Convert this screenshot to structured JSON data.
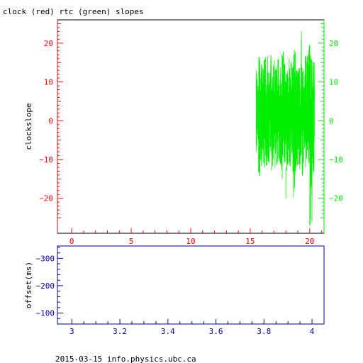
{
  "title": "clock (red) rtc (green) slopes",
  "footer": "2015-03-15 info.physics.ubc.ca",
  "colors": {
    "red": "#ff0000",
    "green": "#00ee00",
    "blue": "#0000aa",
    "black": "#000000"
  },
  "chart_data": [
    {
      "type": "line",
      "title": "clock (red) rtc (green) slopes",
      "ylabel": "clockslope",
      "xlim": [
        -1.2,
        21.2
      ],
      "ylim": [
        -29,
        26
      ],
      "x_ticks": [
        0,
        5,
        10,
        15,
        20
      ],
      "x_tick_labels": [
        "0",
        "5",
        "10",
        "15",
        "20"
      ],
      "y_ticks": [
        -20,
        -10,
        0,
        10,
        20
      ],
      "y_tick_labels_left": [
        "−20",
        "−10",
        "0",
        "10",
        "20"
      ],
      "y_tick_labels_right": [
        "−20",
        "−10",
        "0",
        "10",
        "20"
      ],
      "series": [
        {
          "color": "#ff0000",
          "points": []
        },
        {
          "color": "#00ee00",
          "x_start": 15.5,
          "x_end": 20.4,
          "envelope_low": [
            -8,
            -15,
            -12,
            -13,
            -12,
            -11,
            -14,
            -12,
            -13,
            -11,
            -12,
            -15,
            -11,
            -13,
            -12,
            -14,
            -20,
            -12,
            -13,
            -15,
            -11,
            -12,
            -13,
            -27,
            -14
          ],
          "envelope_high": [
            13,
            18,
            15,
            16,
            17,
            14,
            17,
            16,
            15,
            16,
            16,
            18,
            15,
            14,
            16,
            15,
            19,
            13,
            14,
            23,
            14,
            17,
            20,
            18,
            16
          ],
          "points": [
            [
              15.5,
              -8
            ],
            [
              15.5,
              13
            ],
            [
              19.3,
              23
            ],
            [
              20.0,
              -27
            ],
            [
              18.0,
              -20
            ]
          ]
        }
      ]
    },
    {
      "type": "line",
      "ylabel": "offset(ms)",
      "xlim": [
        2.94,
        4.05
      ],
      "ylim": [
        -60,
        -345
      ],
      "x_ticks": [
        3,
        3.2,
        3.4,
        3.6,
        3.8,
        4
      ],
      "x_tick_labels": [
        "3",
        "3.2",
        "3.4",
        "3.6",
        "3.8",
        "4"
      ],
      "y_ticks": [
        -300,
        -200,
        -100
      ],
      "y_tick_labels": [
        "−300",
        "−200",
        "−100"
      ],
      "series": []
    }
  ]
}
